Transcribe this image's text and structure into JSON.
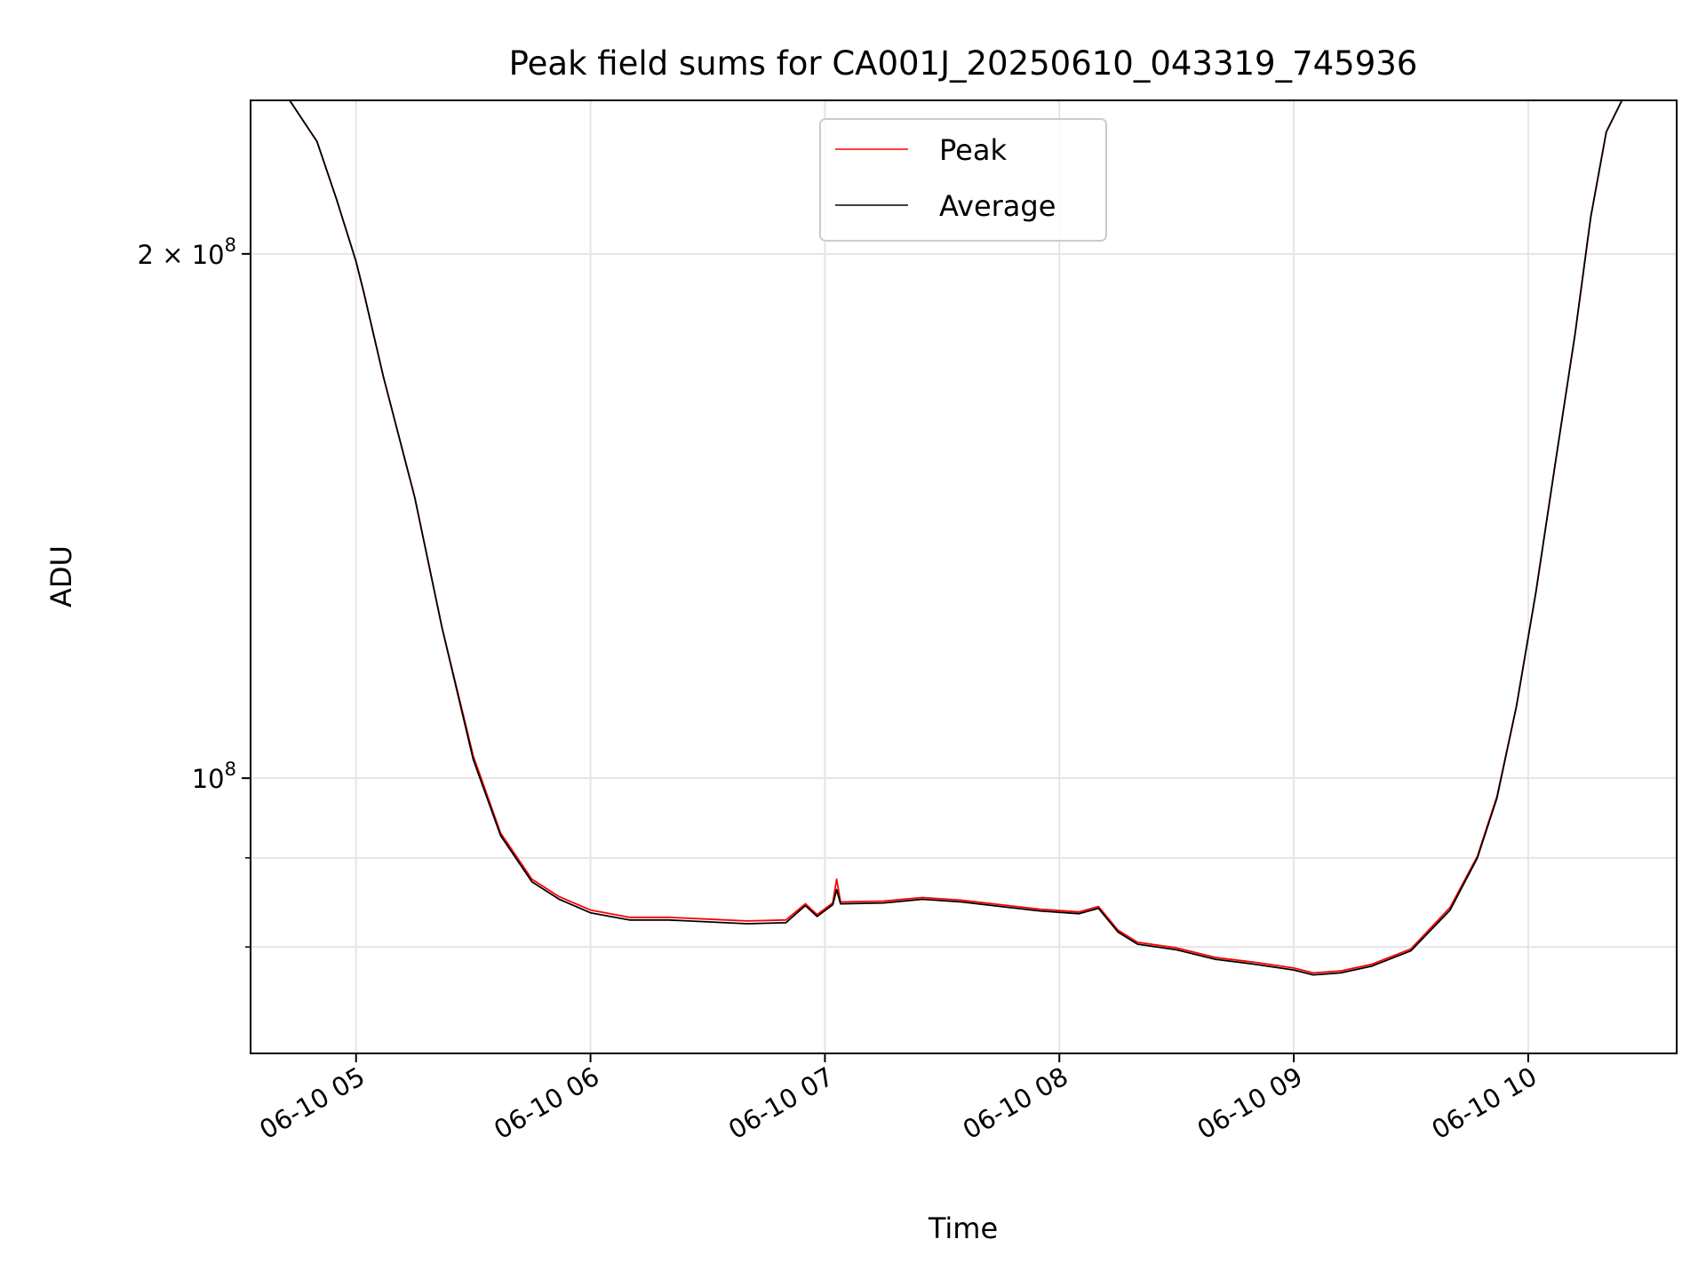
{
  "chart_data": {
    "type": "line",
    "title": "Peak field sums for CA001J_20250610_043319_745936",
    "xlabel": "Time",
    "ylabel": "ADU",
    "y_scale": "log",
    "grid": true,
    "legend_position": "upper center",
    "xlim": [
      "2025-06-10 04:33",
      "2025-06-10 10:38"
    ],
    "ylim": [
      69500000,
      245000000
    ],
    "x_ticks": [
      {
        "value": "2025-06-10 05:00",
        "label": "06-10 05"
      },
      {
        "value": "2025-06-10 06:00",
        "label": "06-10 06"
      },
      {
        "value": "2025-06-10 07:00",
        "label": "06-10 07"
      },
      {
        "value": "2025-06-10 08:00",
        "label": "06-10 08"
      },
      {
        "value": "2025-06-10 09:00",
        "label": "06-10 09"
      },
      {
        "value": "2025-06-10 10:00",
        "label": "06-10 10"
      }
    ],
    "y_ticks": [
      {
        "value": 200000000,
        "label_base": "2 × 10",
        "label_exp": "8"
      },
      {
        "value": 100000000,
        "label_base": "10",
        "label_exp": "8"
      }
    ],
    "y_minor_ticks": [
      80000000,
      90000000
    ],
    "series": [
      {
        "name": "Peak",
        "color": "#ff0000",
        "points": [
          [
            "2025-06-10 04:43",
            245000000
          ],
          [
            "2025-06-10 04:50",
            232000000
          ],
          [
            "2025-06-10 04:55",
            215000000
          ],
          [
            "2025-06-10 05:00",
            198000000
          ],
          [
            "2025-06-10 05:02",
            190000000
          ],
          [
            "2025-06-10 05:07",
            170000000
          ],
          [
            "2025-06-10 05:15",
            145000000
          ],
          [
            "2025-06-10 05:22",
            122000000
          ],
          [
            "2025-06-10 05:30",
            103000000
          ],
          [
            "2025-06-10 05:37",
            93000000
          ],
          [
            "2025-06-10 05:45",
            87500000
          ],
          [
            "2025-06-10 05:52",
            85500000
          ],
          [
            "2025-06-10 06:00",
            84000000
          ],
          [
            "2025-06-10 06:10",
            83200000
          ],
          [
            "2025-06-10 06:20",
            83200000
          ],
          [
            "2025-06-10 06:30",
            83000000
          ],
          [
            "2025-06-10 06:40",
            82800000
          ],
          [
            "2025-06-10 06:50",
            82900000
          ],
          [
            "2025-06-10 06:55",
            84700000
          ],
          [
            "2025-06-10 06:58",
            83500000
          ],
          [
            "2025-06-10 07:02",
            84800000
          ],
          [
            "2025-06-10 07:03",
            87500000
          ],
          [
            "2025-06-10 07:04",
            84900000
          ],
          [
            "2025-06-10 07:15",
            85000000
          ],
          [
            "2025-06-10 07:25",
            85400000
          ],
          [
            "2025-06-10 07:35",
            85100000
          ],
          [
            "2025-06-10 07:45",
            84600000
          ],
          [
            "2025-06-10 07:55",
            84100000
          ],
          [
            "2025-06-10 08:05",
            83800000
          ],
          [
            "2025-06-10 08:10",
            84400000
          ],
          [
            "2025-06-10 08:15",
            81800000
          ],
          [
            "2025-06-10 08:20",
            80500000
          ],
          [
            "2025-06-10 08:30",
            79900000
          ],
          [
            "2025-06-10 08:40",
            78900000
          ],
          [
            "2025-06-10 08:50",
            78400000
          ],
          [
            "2025-06-10 09:00",
            77800000
          ],
          [
            "2025-06-10 09:05",
            77300000
          ],
          [
            "2025-06-10 09:12",
            77500000
          ],
          [
            "2025-06-10 09:20",
            78200000
          ],
          [
            "2025-06-10 09:30",
            79800000
          ],
          [
            "2025-06-10 09:40",
            84300000
          ],
          [
            "2025-06-10 09:47",
            90200000
          ],
          [
            "2025-06-10 09:52",
            97600000
          ],
          [
            "2025-06-10 09:57",
            110000000
          ],
          [
            "2025-06-10 10:02",
            128000000
          ],
          [
            "2025-06-10 10:07",
            152000000
          ],
          [
            "2025-06-10 10:12",
            180000000
          ],
          [
            "2025-06-10 10:16",
            210000000
          ],
          [
            "2025-06-10 10:20",
            235000000
          ],
          [
            "2025-06-10 10:24",
            245000000
          ]
        ]
      },
      {
        "name": "Average",
        "color": "#000000",
        "points": [
          [
            "2025-06-10 04:43",
            245000000
          ],
          [
            "2025-06-10 04:50",
            232000000
          ],
          [
            "2025-06-10 04:55",
            215000000
          ],
          [
            "2025-06-10 05:00",
            198000000
          ],
          [
            "2025-06-10 05:02",
            190000000
          ],
          [
            "2025-06-10 05:07",
            170000000
          ],
          [
            "2025-06-10 05:15",
            145000000
          ],
          [
            "2025-06-10 05:22",
            122000000
          ],
          [
            "2025-06-10 05:30",
            102500000
          ],
          [
            "2025-06-10 05:37",
            92700000
          ],
          [
            "2025-06-10 05:45",
            87200000
          ],
          [
            "2025-06-10 05:52",
            85200000
          ],
          [
            "2025-06-10 06:00",
            83700000
          ],
          [
            "2025-06-10 06:10",
            82900000
          ],
          [
            "2025-06-10 06:20",
            82900000
          ],
          [
            "2025-06-10 06:30",
            82700000
          ],
          [
            "2025-06-10 06:40",
            82500000
          ],
          [
            "2025-06-10 06:50",
            82600000
          ],
          [
            "2025-06-10 06:55",
            84500000
          ],
          [
            "2025-06-10 06:58",
            83300000
          ],
          [
            "2025-06-10 07:02",
            84600000
          ],
          [
            "2025-06-10 07:03",
            86300000
          ],
          [
            "2025-06-10 07:04",
            84700000
          ],
          [
            "2025-06-10 07:15",
            84800000
          ],
          [
            "2025-06-10 07:25",
            85200000
          ],
          [
            "2025-06-10 07:35",
            84900000
          ],
          [
            "2025-06-10 07:45",
            84400000
          ],
          [
            "2025-06-10 07:55",
            83900000
          ],
          [
            "2025-06-10 08:05",
            83600000
          ],
          [
            "2025-06-10 08:10",
            84200000
          ],
          [
            "2025-06-10 08:15",
            81600000
          ],
          [
            "2025-06-10 08:20",
            80300000
          ],
          [
            "2025-06-10 08:30",
            79700000
          ],
          [
            "2025-06-10 08:40",
            78700000
          ],
          [
            "2025-06-10 08:50",
            78200000
          ],
          [
            "2025-06-10 09:00",
            77600000
          ],
          [
            "2025-06-10 09:05",
            77100000
          ],
          [
            "2025-06-10 09:12",
            77300000
          ],
          [
            "2025-06-10 09:20",
            78000000
          ],
          [
            "2025-06-10 09:30",
            79600000
          ],
          [
            "2025-06-10 09:40",
            84000000
          ],
          [
            "2025-06-10 09:47",
            90000000
          ],
          [
            "2025-06-10 09:52",
            97400000
          ],
          [
            "2025-06-10 09:57",
            110000000
          ],
          [
            "2025-06-10 10:02",
            128000000
          ],
          [
            "2025-06-10 10:07",
            152000000
          ],
          [
            "2025-06-10 10:12",
            180000000
          ],
          [
            "2025-06-10 10:16",
            210000000
          ],
          [
            "2025-06-10 10:20",
            235000000
          ],
          [
            "2025-06-10 10:24",
            245000000
          ]
        ]
      }
    ]
  }
}
